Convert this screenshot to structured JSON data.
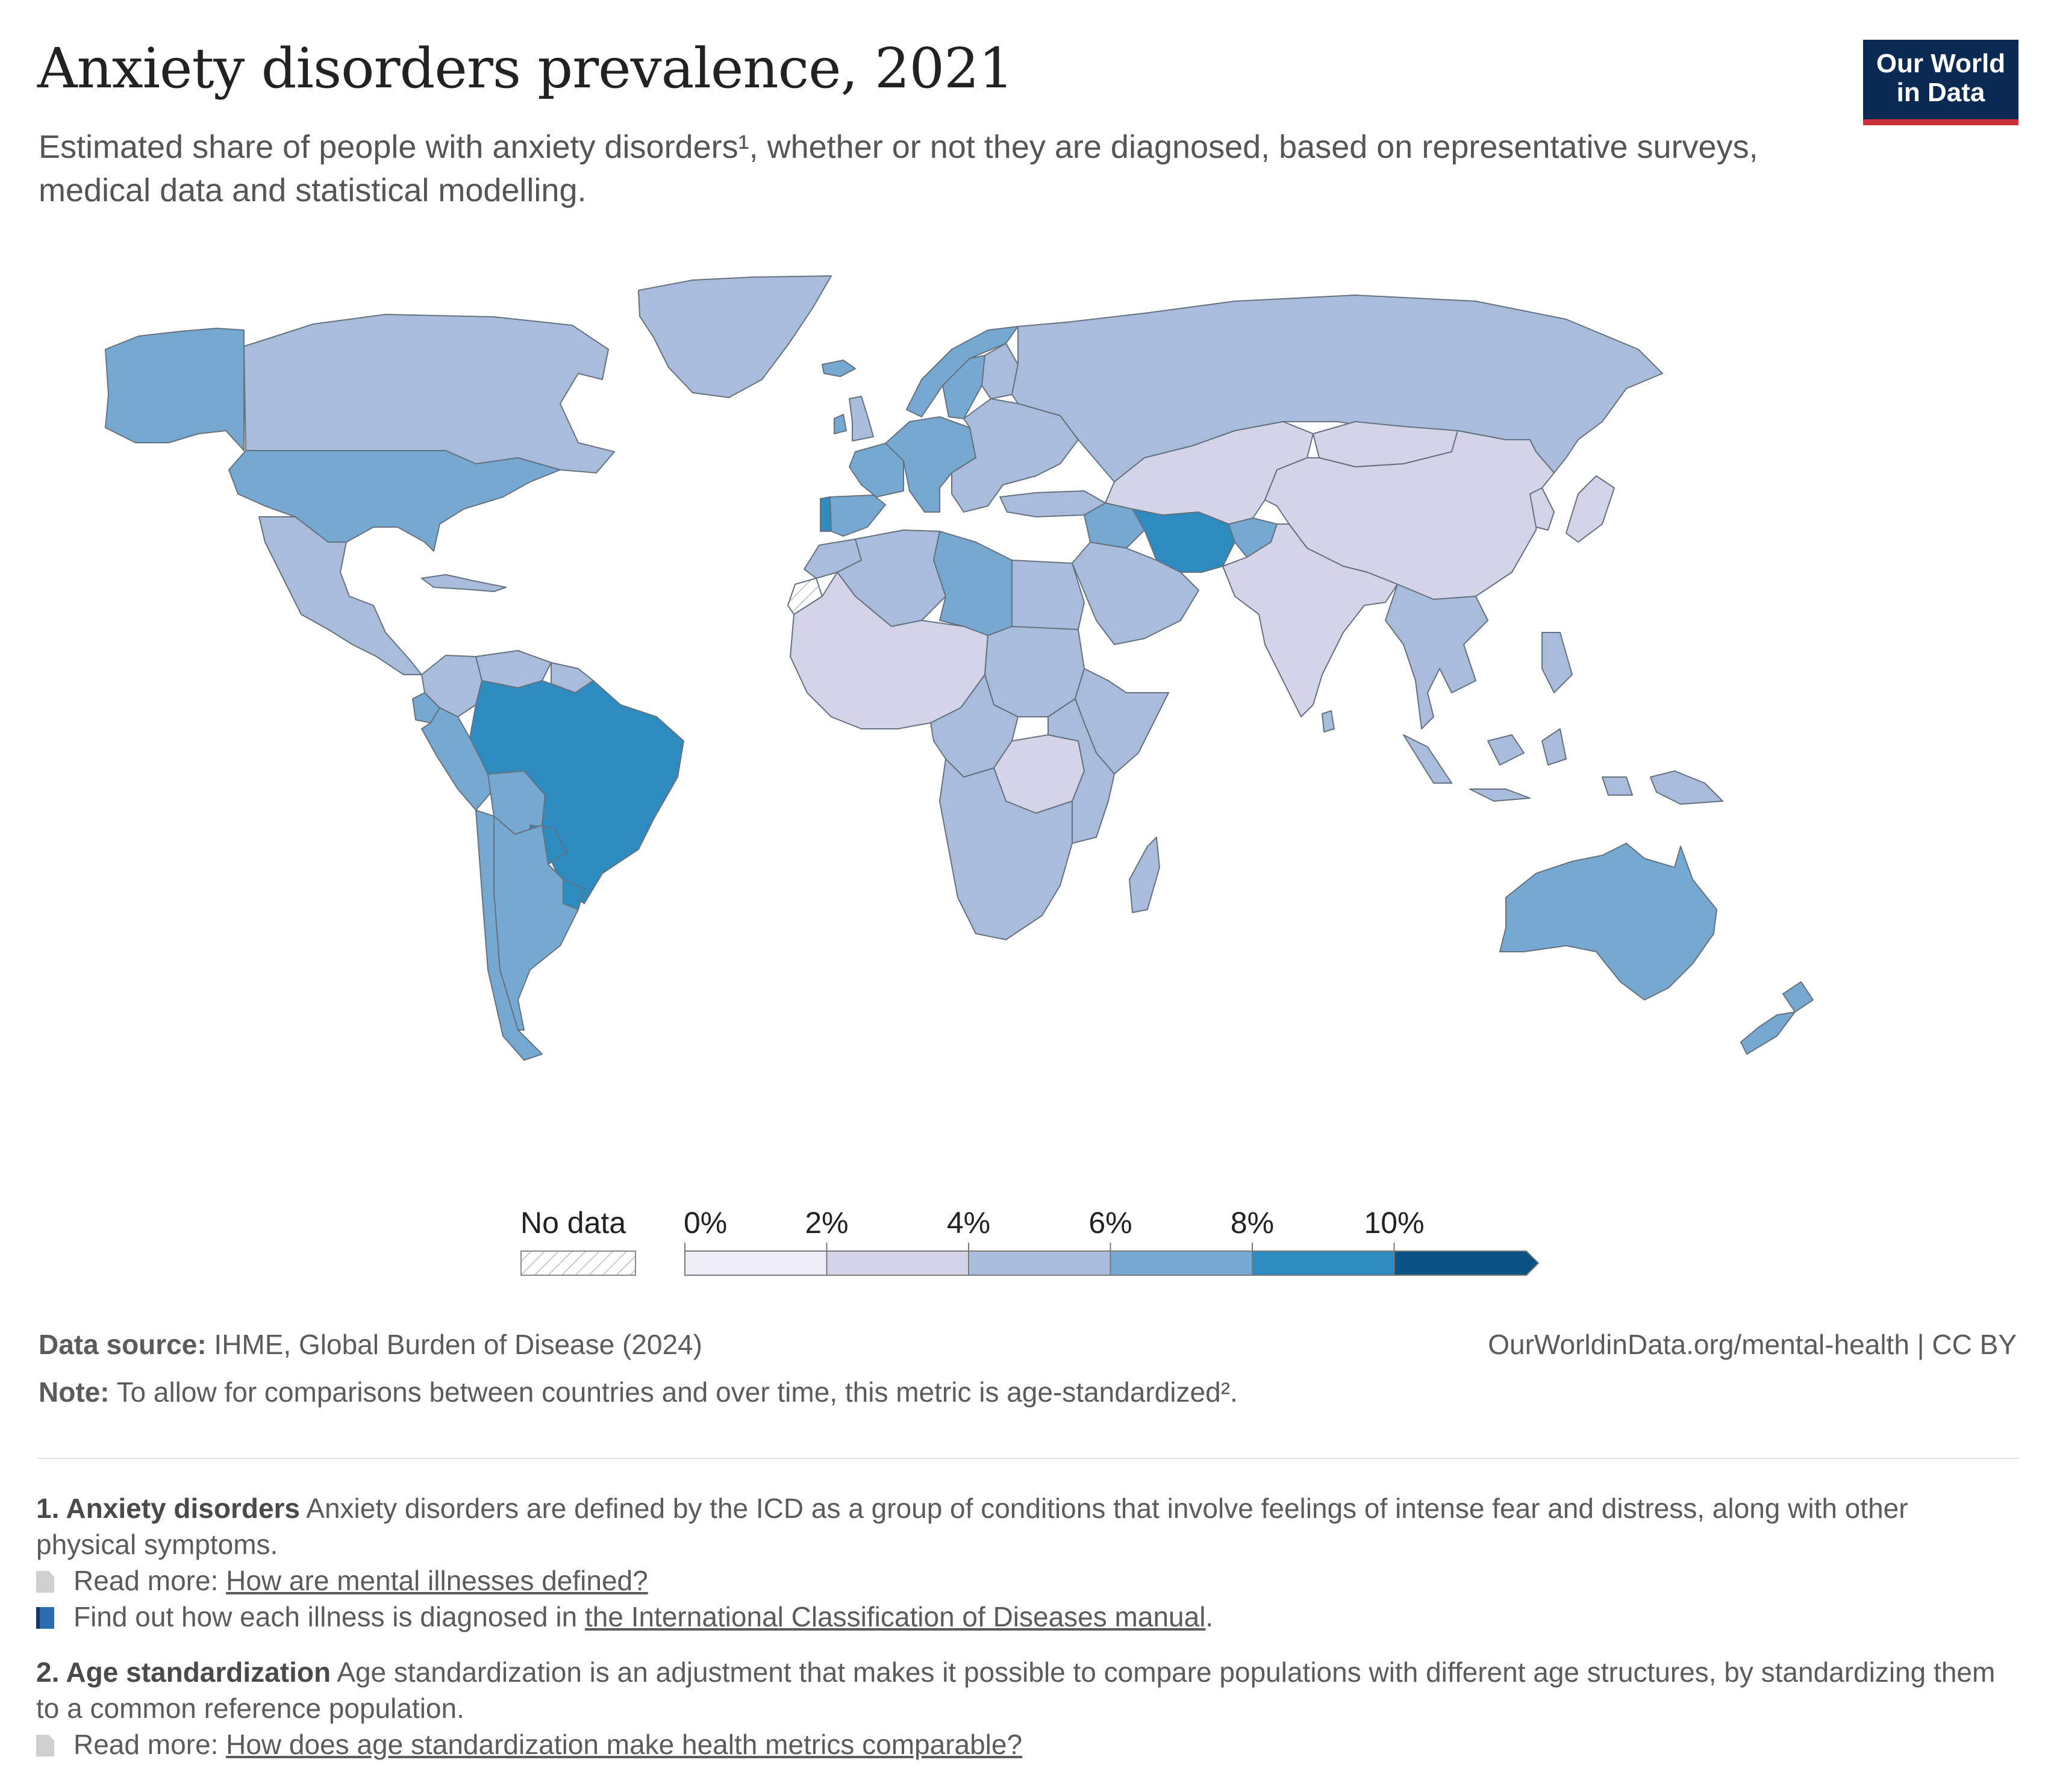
{
  "header": {
    "title": "Anxiety disorders prevalence, 2021",
    "subtitle": "Estimated share of people with anxiety disorders¹, whether or not they are diagnosed, based on representative surveys, medical data and statistical modelling.",
    "logo_line1": "Our World",
    "logo_line2": "in Data"
  },
  "colors": {
    "logo_bg": "#0a2a53",
    "logo_accent": "#c8313a",
    "no_data_hatch": "#bdbdbd",
    "bins": [
      "#efeef6",
      "#d3d4e8",
      "#a9bcdb",
      "#76a9d1",
      "#2d8bbf",
      "#0b5285"
    ]
  },
  "legend": {
    "no_data_label": "No data",
    "ticks": [
      "0%",
      "2%",
      "4%",
      "6%",
      "8%",
      "10%"
    ]
  },
  "map_data": {
    "type": "choropleth",
    "indicator": "Anxiety disorders prevalence, 2021",
    "unit": "%",
    "bins": [
      {
        "range": [
          0,
          2
        ]
      },
      {
        "range": [
          2,
          4
        ]
      },
      {
        "range": [
          4,
          6
        ]
      },
      {
        "range": [
          6,
          8
        ]
      },
      {
        "range": [
          8,
          10
        ]
      },
      {
        "range": [
          10,
          null
        ]
      }
    ],
    "regions": [
      {
        "name": "Canada",
        "bin": 2
      },
      {
        "name": "Alaska (United States)",
        "bin": 3
      },
      {
        "name": "Greenland",
        "bin": 2
      },
      {
        "name": "United States",
        "bin": 3
      },
      {
        "name": "Mexico & Central America",
        "bin": 2
      },
      {
        "name": "Cuba & Caribbean",
        "bin": 2
      },
      {
        "name": "Colombia",
        "bin": 2
      },
      {
        "name": "Venezuela",
        "bin": 2
      },
      {
        "name": "Guianas",
        "bin": 2
      },
      {
        "name": "Ecuador",
        "bin": 3
      },
      {
        "name": "Peru",
        "bin": 3
      },
      {
        "name": "Bolivia",
        "bin": 3
      },
      {
        "name": "Brazil",
        "bin": 4
      },
      {
        "name": "Paraguay",
        "bin": 4
      },
      {
        "name": "Uruguay",
        "bin": 4
      },
      {
        "name": "Chile",
        "bin": 3
      },
      {
        "name": "Argentina",
        "bin": 3
      },
      {
        "name": "Iceland",
        "bin": 3
      },
      {
        "name": "Ireland",
        "bin": 3
      },
      {
        "name": "United Kingdom",
        "bin": 2
      },
      {
        "name": "Portugal",
        "bin": 4
      },
      {
        "name": "Spain",
        "bin": 3
      },
      {
        "name": "France",
        "bin": 3
      },
      {
        "name": "Western & Central Europe",
        "bin": 3
      },
      {
        "name": "Norway",
        "bin": 3
      },
      {
        "name": "Sweden",
        "bin": 3
      },
      {
        "name": "Finland",
        "bin": 2
      },
      {
        "name": "Eastern Europe & Balkans",
        "bin": 2
      },
      {
        "name": "Turkey",
        "bin": 2
      },
      {
        "name": "Russia",
        "bin": 2
      },
      {
        "name": "Morocco",
        "bin": 2
      },
      {
        "name": "Algeria & Tunisia",
        "bin": 2
      },
      {
        "name": "Libya",
        "bin": 3
      },
      {
        "name": "Egypt",
        "bin": 2
      },
      {
        "name": "Western Sahara",
        "bin": null
      },
      {
        "name": "West Africa & Sahel",
        "bin": 1
      },
      {
        "name": "Sudan & Chad",
        "bin": 2
      },
      {
        "name": "Horn of Africa",
        "bin": 2
      },
      {
        "name": "Central Africa",
        "bin": 2
      },
      {
        "name": "DR Congo",
        "bin": 1
      },
      {
        "name": "East Africa",
        "bin": 2
      },
      {
        "name": "Southern Africa",
        "bin": 2
      },
      {
        "name": "Madagascar",
        "bin": 2
      },
      {
        "name": "Levant & Iraq",
        "bin": 3
      },
      {
        "name": "Arabian Peninsula",
        "bin": 2
      },
      {
        "name": "Iran",
        "bin": 4
      },
      {
        "name": "Afghanistan",
        "bin": 3
      },
      {
        "name": "Central Asia",
        "bin": 1
      },
      {
        "name": "Mongolia",
        "bin": 1
      },
      {
        "name": "China",
        "bin": 1
      },
      {
        "name": "Korea",
        "bin": 1
      },
      {
        "name": "Japan",
        "bin": 1
      },
      {
        "name": "Pakistan & India",
        "bin": 1
      },
      {
        "name": "Sri Lanka",
        "bin": 2
      },
      {
        "name": "Southeast Asia",
        "bin": 2
      },
      {
        "name": "Indonesia & Philippines",
        "bin": 2
      },
      {
        "name": "Papua New Guinea",
        "bin": 2
      },
      {
        "name": "Australia",
        "bin": 3
      },
      {
        "name": "New Zealand",
        "bin": 3
      }
    ]
  },
  "footer": {
    "source_label": "Data source:",
    "source_text": " IHME, Global Burden of Disease (2024)",
    "url": "OurWorldinData.org/mental-health | CC BY",
    "note_label": "Note:",
    "note_text": " To allow for comparisons between countries and over time, this metric is age-standardized².",
    "fn1_heading": "1. Anxiety disorders",
    "fn1_text": " Anxiety disorders are defined by the ICD as a group of conditions that involve feelings of intense fear and distress, along with other physical symptoms.",
    "fn1_read_prefix": "Read more: ",
    "fn1_read_link": "How are mental illnesses defined?",
    "fn1_find_prefix": "Find out how each illness is diagnosed in ",
    "fn1_find_link": "the International Classification of Diseases manual",
    "fn1_find_suffix": ".",
    "fn2_heading": "2. Age standardization",
    "fn2_text": " Age standardization is an adjustment that makes it possible to compare populations with different age structures, by standardizing them to a common reference population.",
    "fn2_read_prefix": "Read more: ",
    "fn2_read_link": "How does age standardization make health metrics comparable?"
  }
}
